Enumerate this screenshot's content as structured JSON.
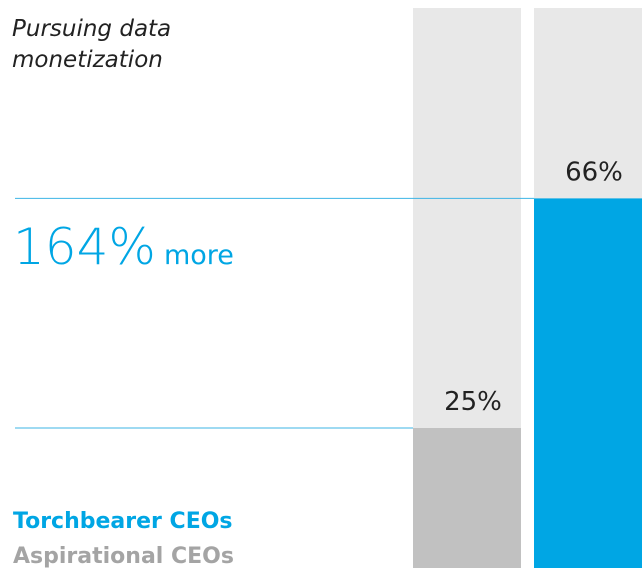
{
  "chart_data": {
    "type": "bar",
    "title": "Pursuing data monetization",
    "annotation": {
      "figure": "164%",
      "text": "more"
    },
    "series": [
      {
        "name": "Aspirational CEOs",
        "color": "#c1c1c1",
        "values": [
          25
        ],
        "value_labels": [
          "25%"
        ]
      },
      {
        "name": "Torchbearer CEOs",
        "color": "#00a6e4",
        "values": [
          66
        ],
        "value_labels": [
          "66%"
        ]
      }
    ],
    "ylim": [
      0,
      100
    ]
  }
}
